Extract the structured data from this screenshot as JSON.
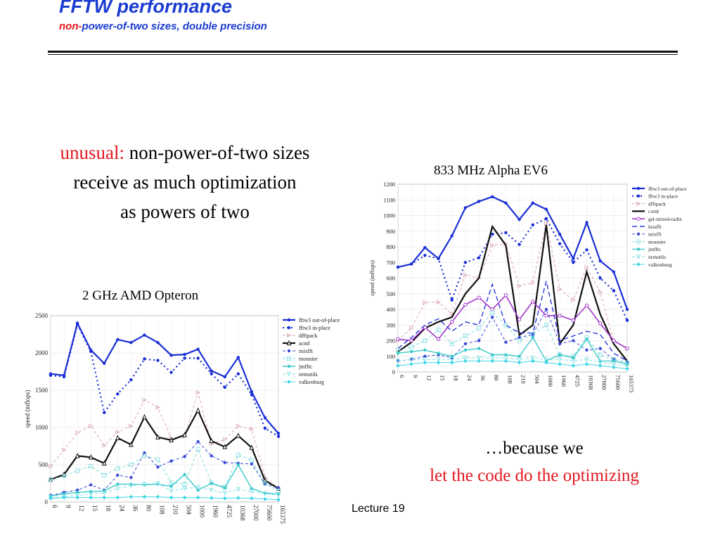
{
  "header": {
    "title": "FFTW performance",
    "subtitle_accent": "non-",
    "subtitle_rest": "power-of-two sizes, double precision"
  },
  "claim": {
    "accent": "unusual:",
    "line1_rest": " non-power-of-two sizes",
    "line2": "receive as much optimization",
    "line3": "as powers of two"
  },
  "because": {
    "line1": "…because we",
    "line2": "let the code do the optimizing"
  },
  "footer": {
    "label": "Lecture 19"
  },
  "colors": {
    "fftw3 out-of-place": "#1a2fd6",
    "fftw3 in-place": "#1a2fd6",
    "dfftpack": "#d9a6b0",
    "acml": "#111111",
    "cxml": "#111111",
    "gsl-mixed-radix": "#a335c9",
    "kissfft": "#2a3ae0",
    "mixfft": "#3a4ad8",
    "monnier": "#7adce0",
    "jmfftc": "#3cc9c9",
    "nrmutils": "#7fe0e6",
    "valkenburg": "#3fd6e6"
  },
  "chart_data": [
    {
      "type": "line",
      "title": "2 GHz AMD Opteron",
      "ylabel": "speed (mflops)",
      "xlabel": "",
      "ylim": [
        0,
        2500
      ],
      "yticks": [
        "0",
        "500",
        "1000",
        "1500",
        "2000",
        "2500"
      ],
      "grid": true,
      "legend": "top-right",
      "categories": [
        "6",
        "9",
        "12",
        "15",
        "18",
        "24",
        "36",
        "80",
        "108",
        "210",
        "504",
        "1000",
        "1960",
        "4725",
        "10368",
        "27000",
        "75600",
        "165375"
      ],
      "series": [
        {
          "name": "fftw3 out-of-place",
          "values": [
            1720,
            1700,
            2400,
            2040,
            1860,
            2180,
            2140,
            2240,
            2140,
            1970,
            1980,
            2050,
            1760,
            1680,
            1940,
            1480,
            1130,
            920
          ]
        },
        {
          "name": "fftw3 in-place",
          "values": [
            1700,
            1680,
            2380,
            2020,
            1200,
            1450,
            1640,
            1920,
            1900,
            1740,
            1930,
            1930,
            1720,
            1540,
            1720,
            1440,
            990,
            880
          ]
        },
        {
          "name": "dfftpack",
          "values": [
            480,
            700,
            930,
            1020,
            760,
            940,
            1020,
            1370,
            1270,
            860,
            880,
            1470,
            780,
            840,
            1020,
            980,
            330,
            190
          ]
        },
        {
          "name": "acml",
          "values": [
            300,
            370,
            620,
            600,
            520,
            860,
            770,
            1140,
            870,
            830,
            900,
            1230,
            820,
            740,
            890,
            730,
            290,
            180
          ]
        },
        {
          "name": "mixfft",
          "values": [
            90,
            130,
            160,
            230,
            160,
            360,
            330,
            660,
            470,
            550,
            610,
            810,
            620,
            530,
            520,
            510,
            240,
            190
          ]
        },
        {
          "name": "monnier",
          "values": [
            300,
            350,
            420,
            480,
            360,
            450,
            500,
            620,
            570,
            260,
            240,
            710,
            260,
            200,
            630,
            560,
            250,
            150
          ]
        },
        {
          "name": "jmfftc",
          "values": [
            80,
            110,
            130,
            140,
            150,
            240,
            240,
            230,
            240,
            210,
            370,
            160,
            250,
            190,
            500,
            180,
            120,
            110
          ]
        },
        {
          "name": "nrmutils",
          "values": [
            60,
            70,
            90,
            110,
            120,
            180,
            220,
            240,
            250,
            150,
            180,
            200,
            160,
            120,
            170,
            140,
            110,
            90
          ]
        },
        {
          "name": "valkenburg",
          "values": [
            50,
            60,
            60,
            60,
            60,
            60,
            70,
            70,
            70,
            60,
            60,
            60,
            55,
            50,
            55,
            50,
            40,
            30
          ]
        }
      ]
    },
    {
      "type": "line",
      "title": "833 MHz Alpha EV6",
      "ylabel": "speed (mflops)",
      "xlabel": "",
      "ylim": [
        0,
        1200
      ],
      "yticks": [
        "0",
        "100",
        "200",
        "300",
        "400",
        "500",
        "600",
        "700",
        "800",
        "900",
        "1000",
        "1100",
        "1200"
      ],
      "grid": true,
      "legend": "top-right",
      "categories": [
        "6",
        "9",
        "12",
        "15",
        "18",
        "24",
        "36",
        "80",
        "108",
        "210",
        "504",
        "1000",
        "1960",
        "4725",
        "10368",
        "27000",
        "75600",
        "165375"
      ],
      "series": [
        {
          "name": "fftw3 out-of-place",
          "values": [
            670,
            690,
            795,
            725,
            870,
            1050,
            1090,
            1120,
            1080,
            975,
            1080,
            1040,
            880,
            725,
            955,
            710,
            640,
            400
          ]
        },
        {
          "name": "fftw3 in-place",
          "values": [
            670,
            690,
            745,
            725,
            460,
            700,
            730,
            880,
            890,
            815,
            940,
            980,
            820,
            700,
            780,
            600,
            520,
            330
          ]
        },
        {
          "name": "dfftpack",
          "values": [
            200,
            280,
            445,
            445,
            370,
            620,
            600,
            810,
            820,
            550,
            570,
            950,
            530,
            460,
            670,
            510,
            200,
            150
          ]
        },
        {
          "name": "cxml",
          "values": [
            130,
            190,
            280,
            320,
            350,
            500,
            600,
            930,
            810,
            235,
            300,
            940,
            180,
            300,
            640,
            370,
            180,
            70
          ]
        },
        {
          "name": "gsl-mixed-radix",
          "values": [
            210,
            200,
            285,
            210,
            320,
            430,
            475,
            400,
            490,
            335,
            450,
            360,
            360,
            330,
            425,
            310,
            200,
            150
          ]
        },
        {
          "name": "kissfft",
          "values": [
            150,
            220,
            300,
            340,
            260,
            320,
            300,
            560,
            300,
            250,
            250,
            580,
            200,
            230,
            260,
            240,
            120,
            70
          ]
        },
        {
          "name": "mixfft",
          "values": [
            70,
            80,
            100,
            110,
            90,
            180,
            200,
            350,
            190,
            220,
            240,
            400,
            180,
            200,
            140,
            150,
            80,
            60
          ]
        },
        {
          "name": "monnier",
          "values": [
            140,
            160,
            200,
            270,
            180,
            230,
            280,
            380,
            300,
            200,
            240,
            300,
            110,
            100,
            220,
            110,
            80,
            60
          ]
        },
        {
          "name": "jmfftc",
          "values": [
            120,
            130,
            140,
            120,
            100,
            140,
            150,
            110,
            110,
            100,
            220,
            70,
            110,
            90,
            210,
            70,
            70,
            50
          ]
        },
        {
          "name": "nrmutils",
          "values": [
            70,
            80,
            80,
            80,
            80,
            90,
            90,
            90,
            90,
            80,
            90,
            80,
            80,
            70,
            80,
            60,
            50,
            40
          ]
        },
        {
          "name": "valkenburg",
          "values": [
            40,
            50,
            60,
            60,
            60,
            70,
            70,
            70,
            70,
            60,
            70,
            60,
            50,
            40,
            50,
            40,
            30,
            20
          ]
        }
      ]
    }
  ]
}
